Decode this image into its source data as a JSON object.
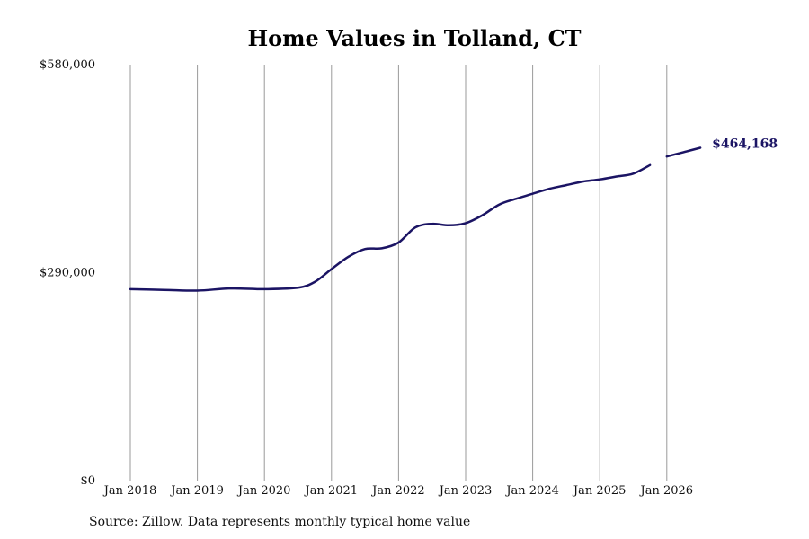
{
  "chart_data": {
    "type": "line",
    "title": "Home Values in Tolland, CT",
    "xlabel": "",
    "ylabel": "",
    "x_ticks": [
      "Jan 2018",
      "Jan 2019",
      "Jan 2020",
      "Jan 2021",
      "Jan 2022",
      "Jan 2023",
      "Jan 2024",
      "Jan 2025",
      "Jan 2026"
    ],
    "y_ticks": [
      "$0",
      "$290,000",
      "$580,000"
    ],
    "y_tick_values": [
      0,
      290000,
      580000
    ],
    "ylim": [
      0,
      580000
    ],
    "xlim": [
      "2018-01",
      "2026-07"
    ],
    "grid": "vertical gridlines at x ticks",
    "line_color": "#1b1464",
    "series": [
      {
        "segments": [
          {
            "x": [
              "2018-01",
              "2018-07",
              "2019-01",
              "2019-07",
              "2020-01",
              "2020-07",
              "2020-10",
              "2021-01",
              "2021-04",
              "2021-07",
              "2021-10",
              "2022-01",
              "2022-04",
              "2022-07",
              "2022-10",
              "2023-01",
              "2023-04",
              "2023-07",
              "2023-10",
              "2024-01",
              "2024-04",
              "2024-07",
              "2024-10",
              "2025-01",
              "2025-04",
              "2025-07",
              "2025-10"
            ],
            "y": [
              267000,
              266000,
              265000,
              268000,
              267000,
              269000,
              277000,
              295000,
              312000,
              323000,
              324000,
              332000,
              353000,
              358000,
              356000,
              359000,
              370000,
              385000,
              393000,
              400000,
              407000,
              412000,
              417000,
              420000,
              424000,
              428000,
              440000
            ]
          },
          {
            "x": [
              "2026-01",
              "2026-04",
              "2026-07"
            ],
            "y": [
              452000,
              458000,
              464168
            ]
          }
        ]
      }
    ],
    "end_label": "$464,168"
  },
  "footer": {
    "source": "Source: Zillow. Data represents monthly typical home value"
  }
}
